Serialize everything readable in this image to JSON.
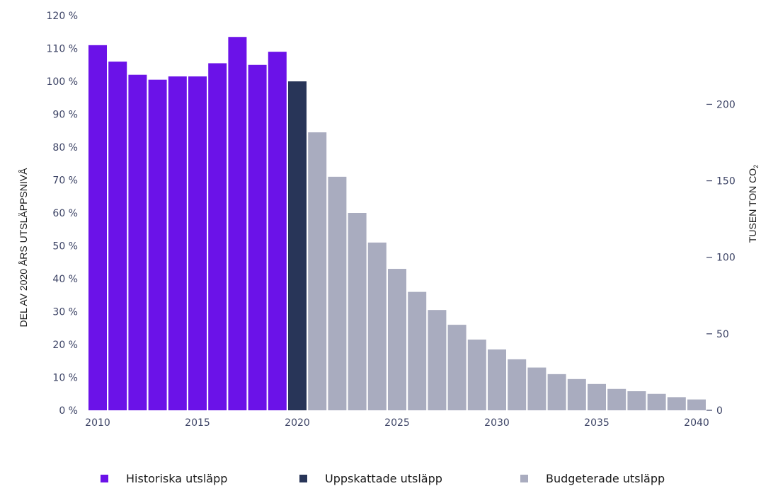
{
  "chart_data": {
    "type": "bar",
    "x": [
      2010,
      2011,
      2012,
      2013,
      2014,
      2015,
      2016,
      2017,
      2018,
      2019,
      2020,
      2021,
      2022,
      2023,
      2024,
      2025,
      2026,
      2027,
      2028,
      2029,
      2030,
      2031,
      2032,
      2033,
      2034,
      2035,
      2036,
      2037,
      2038,
      2039,
      2040
    ],
    "values": [
      111,
      106,
      102,
      100.5,
      101.5,
      101.5,
      105.5,
      113.5,
      105,
      109,
      100,
      84.5,
      71,
      60,
      51,
      43,
      36,
      30.5,
      26,
      21.5,
      18.5,
      15.5,
      13,
      11,
      9.5,
      8,
      6.5,
      5.8,
      5,
      4,
      3.3
    ],
    "series": [
      {
        "name": "Historiska utsläpp",
        "from": 2010,
        "to": 2019,
        "color": "#6b12e8"
      },
      {
        "name": "Uppskattade utsläpp",
        "from": 2020,
        "to": 2020,
        "color": "#283558"
      },
      {
        "name": "Budgeterade utsläpp",
        "from": 2021,
        "to": 2040,
        "color": "#a9acbf"
      }
    ],
    "x_ticks": [
      "2010",
      "2015",
      "2020",
      "2025",
      "2030",
      "2035",
      "2040"
    ],
    "y_left_ticks": [
      "0 %",
      "10 %",
      "20 %",
      "30 %",
      "40 %",
      "50 %",
      "60 %",
      "70 %",
      "80 %",
      "90 %",
      "100 %",
      "110 %",
      "120 %"
    ],
    "y_left_range": [
      0,
      120
    ],
    "y_right_ticks": [
      "0",
      "50",
      "100",
      "150",
      "200"
    ],
    "y_right_range": [
      0,
      258
    ],
    "ylabel_left": "DEL AV 2020 ÅRS UTSLÄPPSNIVÅ",
    "ylabel_right_main": "TUSEN TON CO",
    "ylabel_right_sub": "2",
    "legend_position": "bottom",
    "grid": false
  }
}
